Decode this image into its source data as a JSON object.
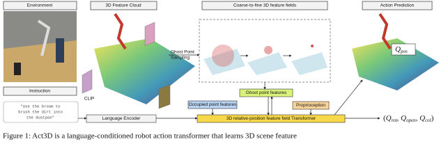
{
  "headers": {
    "environment": "Environment",
    "feature_cloud": "3D Feature Cloud",
    "coarse_to_fine": "Coarse-to-fine 3D feature fields",
    "action_prediction": "Action Prediction"
  },
  "labels": {
    "ghost_sampling": [
      "Ghost Point",
      "Sampling"
    ],
    "clip": "CLIP",
    "instruction": "Instruction",
    "instruction_text": [
      "\"Use the broom to",
      "brush the dirt into",
      "the dustpan\""
    ],
    "language_encoder": "Language Encoder",
    "occupied": "Occupied point features",
    "ghost_features": "Ghost point features",
    "proprioception": "Proprioception",
    "transformer": "3D relative-position feature field Transformer"
  },
  "outputs": {
    "position": {
      "symbol": "Q",
      "subscript": "pos"
    },
    "brackets": [
      "(",
      ")"
    ],
    "separator": ", ",
    "terms": [
      {
        "symbol": "Q",
        "subscript": "rot"
      },
      {
        "symbol": "Q",
        "subscript": "open"
      },
      {
        "symbol": "Q",
        "subscript": "col"
      }
    ]
  },
  "caption": "Figure 1: Act3D is a language-conditioned robot action transformer that learns 3D scene feature"
}
